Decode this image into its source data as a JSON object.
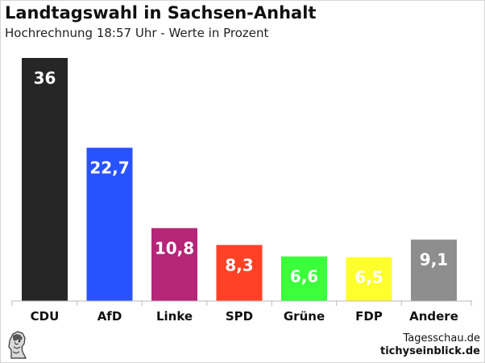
{
  "header": {
    "title": "Landtagswahl in Sachsen-Anhalt",
    "subtitle": "Hochrechnung 18:57 Uhr - Werte in Prozent"
  },
  "footer": {
    "source_line1": "Tagesschau.de",
    "source_line2": "tichyseinblick.de"
  },
  "chart_data": {
    "type": "bar",
    "title": "Landtagswahl in Sachsen-Anhalt",
    "subtitle": "Hochrechnung 18:57 Uhr - Werte in Prozent",
    "xlabel": "",
    "ylabel": "",
    "ylim": [
      0,
      36
    ],
    "grid": false,
    "categories": [
      "CDU",
      "AfD",
      "Linke",
      "SPD",
      "Grüne",
      "FDP",
      "Andere"
    ],
    "values": [
      36,
      22.7,
      10.8,
      8.3,
      6.6,
      6.5,
      9.1
    ],
    "value_labels": [
      "36",
      "22,7",
      "10,8",
      "8,3",
      "6,6",
      "6,5",
      "9,1"
    ],
    "colors": [
      "#262626",
      "#2952ff",
      "#b52578",
      "#ff4126",
      "#3bff3b",
      "#ffff2e",
      "#8e8e8e"
    ],
    "label_colors": [
      "#ffffff",
      "#ffffff",
      "#ffffff",
      "#ffffff",
      "#ffffff",
      "#ffffff",
      "#ffffff"
    ]
  }
}
